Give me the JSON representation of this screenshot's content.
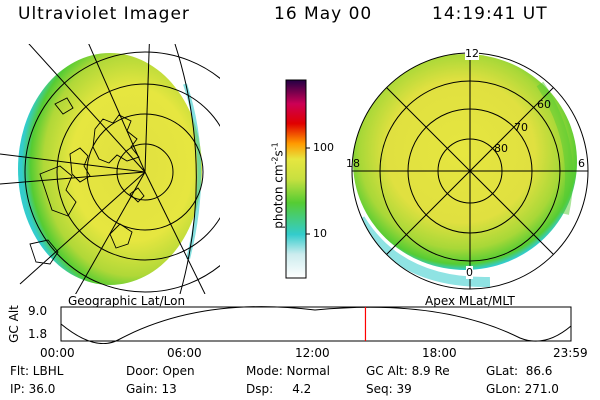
{
  "header": {
    "instrument": "Ultraviolet Imager",
    "date": "16 May 00",
    "time": "14:19:41 UT"
  },
  "colors": {
    "low": "#ffffff",
    "cyan": "#33cccc",
    "green": "#55cc33",
    "yellow": "#e6e640",
    "orange": "#ff9900",
    "red": "#e00000",
    "magenta": "#cc0055",
    "dark": "#220044",
    "marker": "#ff0000"
  },
  "colorbar": {
    "unit_prefix": "photon cm",
    "unit_exp1": "-2",
    "unit_mid": "s",
    "unit_exp2": "-1",
    "ticks": [
      "100",
      "10"
    ]
  },
  "left_panel": {
    "caption": "Geographic Lat/Lon"
  },
  "right_panel": {
    "caption": "Apex MLat/MLT",
    "mlt_labels": [
      "12",
      "18",
      "6",
      "0"
    ],
    "mlat_labels": [
      "60",
      "70",
      "80"
    ]
  },
  "timeline": {
    "ylabel": "GC Alt",
    "y_ticks": [
      "9.0",
      "1.8"
    ],
    "x_ticks": [
      "00:00",
      "06:00",
      "12:00",
      "18:00",
      "23:59"
    ],
    "marker_fraction": 0.597
  },
  "status": {
    "row1": [
      {
        "label": "Flt: LBHL"
      },
      {
        "label": "Door: Open"
      },
      {
        "label": "Mode: Normal"
      },
      {
        "label": "GC Alt: 8.9 Re"
      },
      {
        "label": "GLat:  86.6"
      }
    ],
    "row2": [
      {
        "label": "IP: 36.0"
      },
      {
        "label": "Gain: 13"
      },
      {
        "label": "Dsp:     4.2"
      },
      {
        "label": "Seq: 39"
      },
      {
        "label": "GLon: 271.0"
      }
    ]
  }
}
